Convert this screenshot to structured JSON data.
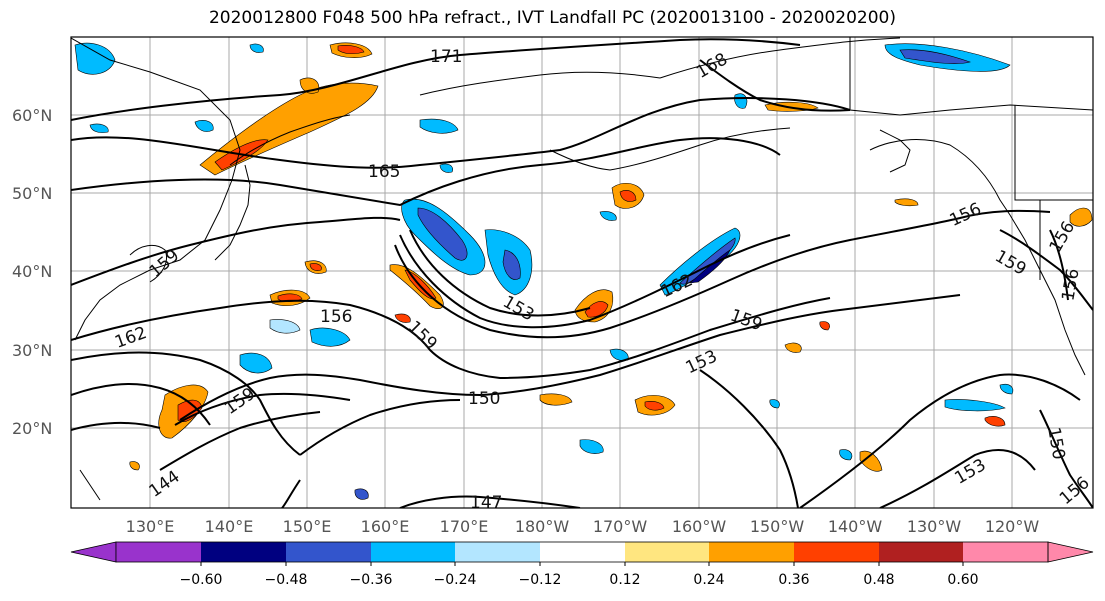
{
  "title": "2020012800 F048 500 hPa refract., IVT Landfall PC (2020013100 - 2020020200)",
  "lat_labels": [
    "60°N",
    "50°N",
    "40°N",
    "30°N",
    "20°N"
  ],
  "lon_labels": [
    "130°E",
    "140°E",
    "150°E",
    "160°E",
    "170°E",
    "180°W",
    "170°W",
    "160°W",
    "150°W",
    "140°W",
    "130°W",
    "120°W"
  ],
  "contour_labels": [
    "171",
    "168",
    "165",
    "159",
    "162",
    "156",
    "153",
    "159",
    "150",
    "147",
    "144",
    "162",
    "159",
    "153",
    "159",
    "156",
    "159",
    "156",
    "150",
    "153",
    "156",
    "156"
  ],
  "colorbar": {
    "colors": [
      "#9933cc",
      "#000080",
      "#3355cc",
      "#00bbff",
      "#b3e6ff",
      "#ffffff",
      "#ffe680",
      "#ffa000",
      "#ff4000",
      "#b02020",
      "#ff88aa"
    ],
    "tick_labels": [
      "−0.60",
      "−0.48",
      "−0.36",
      "−0.24",
      "−0.12",
      "0.12",
      "0.24",
      "0.36",
      "0.48",
      "0.60"
    ]
  }
}
